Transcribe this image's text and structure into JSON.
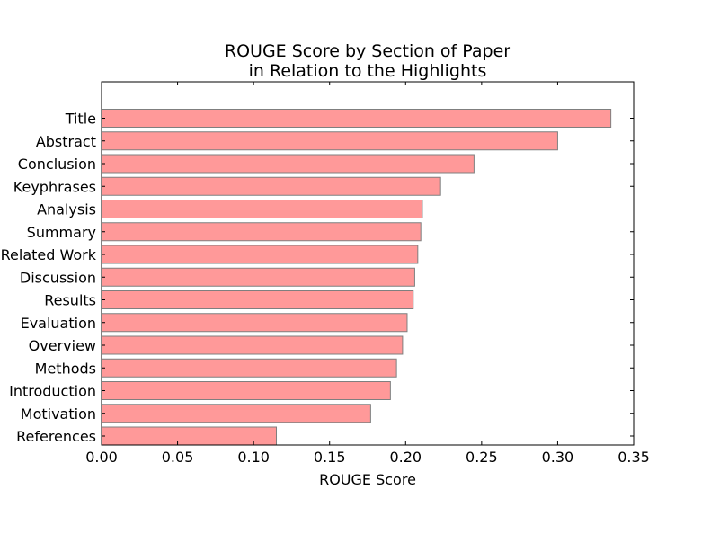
{
  "chart_data": {
    "type": "bar",
    "orientation": "horizontal",
    "title_lines": [
      "ROUGE Score by Section of Paper",
      "in Relation to the Highlights"
    ],
    "xlabel": "ROUGE Score",
    "ylabel": "",
    "xlim": [
      0.0,
      0.35
    ],
    "xticks": [
      0.0,
      0.05,
      0.1,
      0.15,
      0.2,
      0.25,
      0.3,
      0.35
    ],
    "xtick_labels": [
      "0.00",
      "0.05",
      "0.10",
      "0.15",
      "0.20",
      "0.25",
      "0.30",
      "0.35"
    ],
    "categories": [
      "Title",
      "Abstract",
      "Conclusion",
      "Keyphrases",
      "Analysis",
      "Summary",
      "Related Work",
      "Discussion",
      "Results",
      "Evaluation",
      "Overview",
      "Methods",
      "Introduction",
      "Motivation",
      "References"
    ],
    "values": [
      0.335,
      0.3,
      0.245,
      0.223,
      0.211,
      0.21,
      0.208,
      0.206,
      0.205,
      0.201,
      0.198,
      0.194,
      0.19,
      0.177,
      0.115
    ],
    "bar_color": "#ff9999",
    "bar_edge_color": "#7f7f7f",
    "grid": false,
    "legend": "none"
  }
}
